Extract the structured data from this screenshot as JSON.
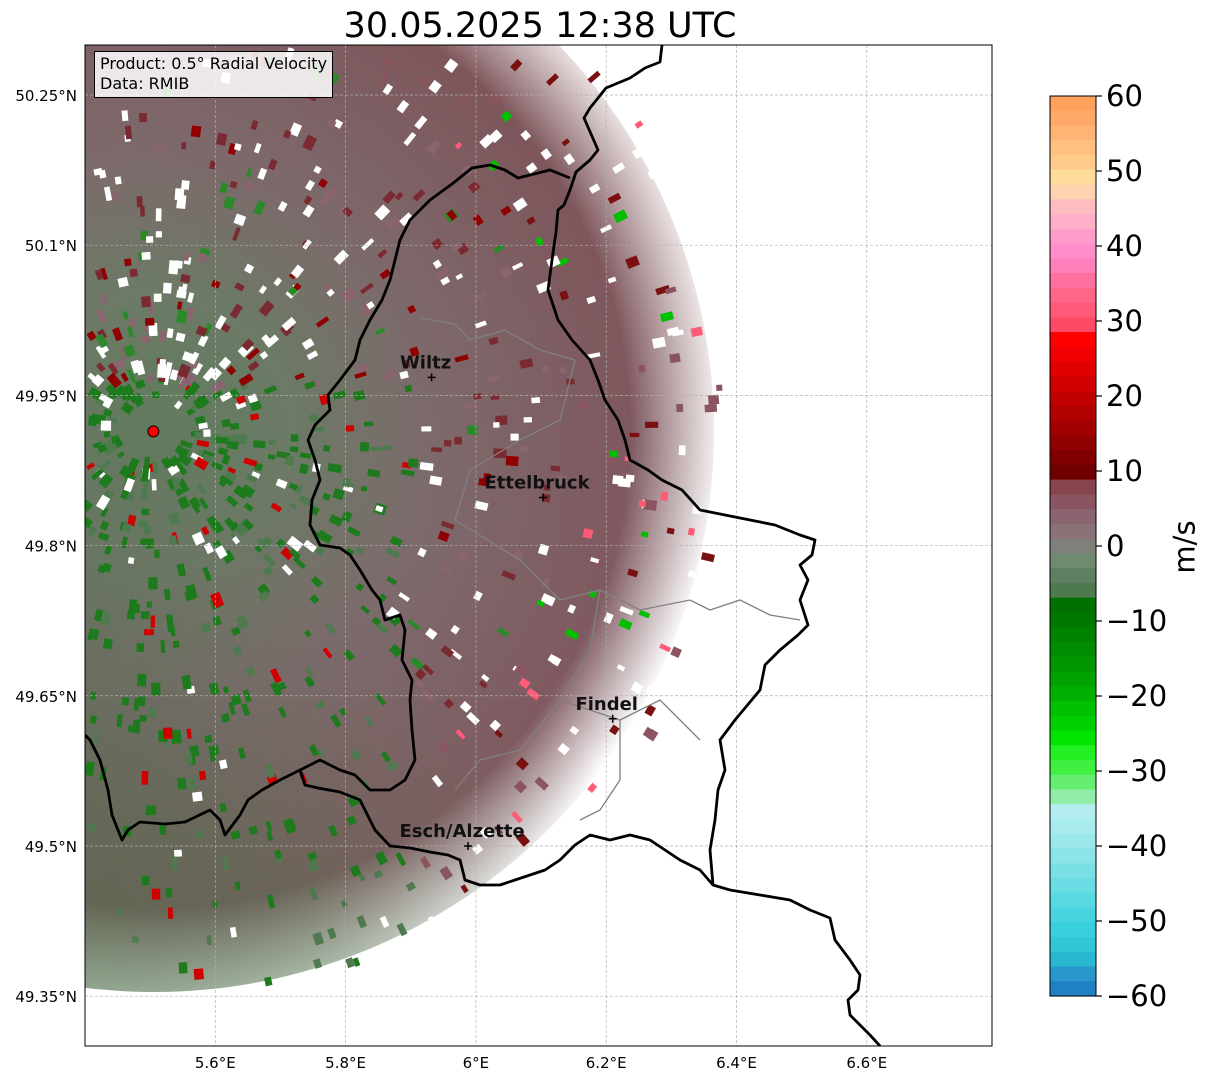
{
  "title": "30.05.2025 12:38 UTC",
  "info_box": {
    "product": "Product: 0.5° Radial Velocity",
    "data": "Data: RMIB"
  },
  "map": {
    "lat_range": [
      49.3,
      50.3
    ],
    "lon_range": [
      5.4,
      6.8
    ],
    "lat_ticks": [
      "50.25°N",
      "50.1°N",
      "49.95°N",
      "49.8°N",
      "49.65°N",
      "49.5°N",
      "49.35°N"
    ],
    "lat_tick_values": [
      50.25,
      50.1,
      49.95,
      49.8,
      49.65,
      49.5,
      49.35
    ],
    "lon_ticks": [
      "5.6°E",
      "5.8°E",
      "6°E",
      "6.2°E",
      "6.4°E",
      "6.6°E"
    ],
    "lon_tick_values": [
      5.6,
      5.8,
      6.0,
      6.2,
      6.4,
      6.6
    ],
    "gridlines": true,
    "radar_site": {
      "lon": 5.505,
      "lat": 49.914,
      "marker": "red-circle"
    },
    "cities": [
      {
        "name": "Wiltz",
        "lon": 5.932,
        "lat": 49.968
      },
      {
        "name": "Ettelbruck",
        "lon": 6.103,
        "lat": 49.848
      },
      {
        "name": "Findel",
        "lon": 6.21,
        "lat": 49.627
      },
      {
        "name": "Esch/Alzette",
        "lon": 5.988,
        "lat": 49.5
      }
    ]
  },
  "colorbar": {
    "label": "m/s",
    "min": -60,
    "max": 60,
    "ticks": [
      "60",
      "50",
      "40",
      "30",
      "20",
      "10",
      "0",
      "−10",
      "−20",
      "−30",
      "−40",
      "−50",
      "−60"
    ],
    "tick_values": [
      60,
      50,
      40,
      30,
      20,
      10,
      0,
      -10,
      -20,
      -30,
      -40,
      -50,
      -60
    ],
    "palette_top_to_bottom": [
      "#ffa15c",
      "#ffa968",
      "#ffb475",
      "#ffc080",
      "#ffcb8a",
      "#ffdc9a",
      "#ffd2b0",
      "#ffbcc0",
      "#ffb0c8",
      "#ff9ccc",
      "#ff8ecb",
      "#ff7fba",
      "#ff70a0",
      "#ff6688",
      "#ff5a78",
      "#ff4a66",
      "#ff0000",
      "#f00000",
      "#e00000",
      "#d00000",
      "#c00000",
      "#b00000",
      "#a00000",
      "#900000",
      "#800000",
      "#700000",
      "#86454d",
      "#8a5560",
      "#8a6570",
      "#8a7377",
      "#80807a",
      "#6f8a6f",
      "#5f8060",
      "#4f7a50",
      "#007000",
      "#007800",
      "#008200",
      "#008c00",
      "#009600",
      "#00a200",
      "#00b000",
      "#00c000",
      "#00d000",
      "#00e400",
      "#22f022",
      "#40f040",
      "#66ee70",
      "#90eeaa",
      "#b4eef0",
      "#a8ecee",
      "#9ae8ea",
      "#8ae4e8",
      "#7ae0e6",
      "#6adce4",
      "#58d8e0",
      "#48d4de",
      "#38d0dc",
      "#30c8d8",
      "#28b8d0",
      "#2898cc",
      "#2080c4"
    ]
  },
  "colors": {
    "border_national": "#000000",
    "border_canton": "#808080",
    "grid": "#b0b0b0",
    "radar_marker": "#ff0000"
  }
}
